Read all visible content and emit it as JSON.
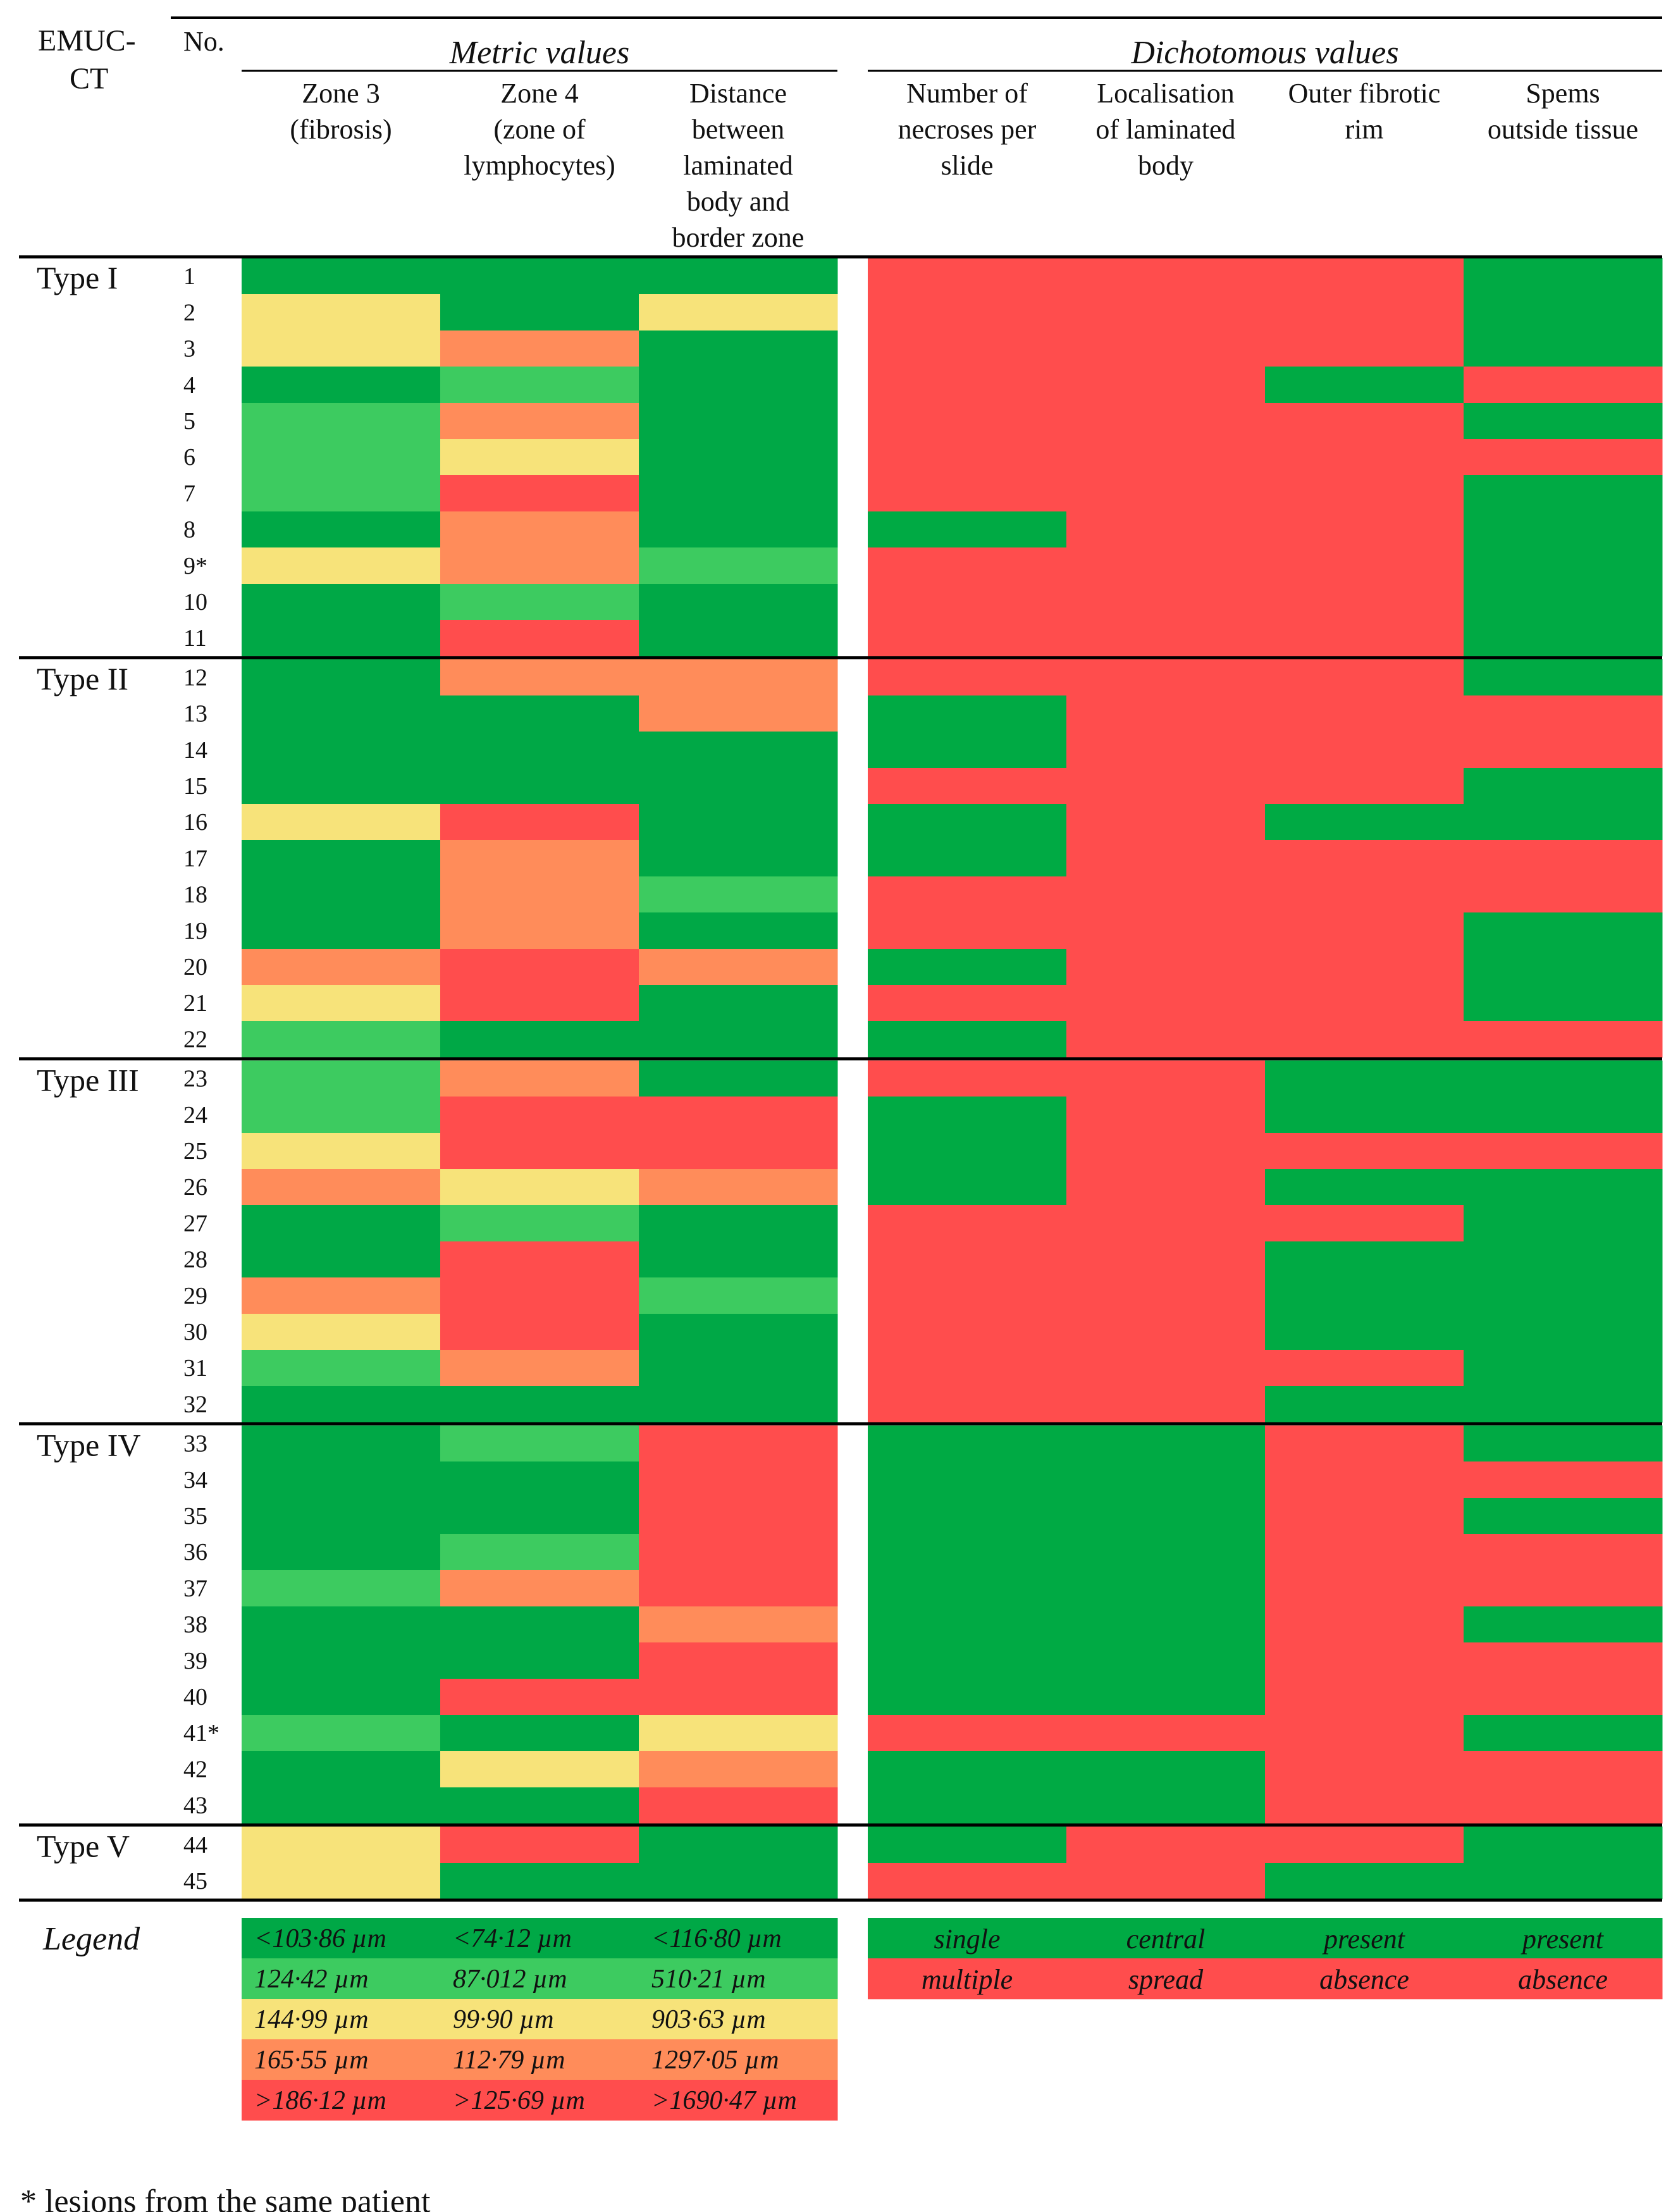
{
  "chart_data": {
    "type": "heatmap",
    "title": "",
    "colors": {
      "green_dark": "#00aa44",
      "green_mid": "#33cc66",
      "yellow": "#f7e37a",
      "orange": "#ff9955",
      "red": "#ff4d4d",
      "present": "#00aa44",
      "absent": "#ff4d4d"
    },
    "header": {
      "emuc_line1": "EMUC-",
      "emuc_line2": "CT",
      "no": "No.",
      "metric_group": "Metric values",
      "dichotomous_group": "Dichotomous values",
      "metric_columns": [
        [
          "Zone 3",
          "(fibrosis)"
        ],
        [
          "Zone 4",
          "(zone of",
          "lymphocytes)"
        ],
        [
          "Distance",
          "between",
          "laminated",
          "body and",
          "border zone"
        ]
      ],
      "dichotomous_columns": [
        [
          "Number of",
          "necroses per",
          "slide"
        ],
        [
          "Localisation",
          "of laminated",
          "body"
        ],
        [
          "Outer fibrotic",
          "rim"
        ],
        [
          "Spems",
          "outside tissue"
        ]
      ]
    },
    "metric_scale": [
      {
        "level": 0,
        "color": "#00a846"
      },
      {
        "level": 1,
        "color": "#3dcb60"
      },
      {
        "level": 2,
        "color": "#f7e37a"
      },
      {
        "level": 3,
        "color": "#ff8c5a"
      },
      {
        "level": 4,
        "color": "#ff4d4d"
      }
    ],
    "groups": [
      {
        "label": "Type I",
        "rows": [
          1,
          2,
          3,
          4,
          5,
          6,
          7,
          8,
          "9*",
          10,
          11
        ]
      },
      {
        "label": "Type II",
        "rows": [
          12,
          13,
          14,
          15,
          16,
          17,
          18,
          19,
          20,
          21,
          22
        ]
      },
      {
        "label": "Type III",
        "rows": [
          23,
          24,
          25,
          26,
          27,
          28,
          29,
          30,
          31,
          32
        ]
      },
      {
        "label": "Type IV",
        "rows": [
          33,
          34,
          35,
          36,
          37,
          38,
          39,
          40,
          "41*",
          42,
          43
        ]
      },
      {
        "label": "Type V",
        "rows": [
          44,
          45
        ]
      }
    ],
    "metric_levels": [
      [
        0,
        0,
        0
      ],
      [
        2,
        0,
        2
      ],
      [
        2,
        3,
        0
      ],
      [
        0,
        1,
        0
      ],
      [
        1,
        3,
        0
      ],
      [
        1,
        2,
        0
      ],
      [
        1,
        4,
        0
      ],
      [
        0,
        3,
        0
      ],
      [
        2,
        3,
        1
      ],
      [
        0,
        1,
        0
      ],
      [
        0,
        4,
        0
      ],
      [
        0,
        3,
        3
      ],
      [
        0,
        0,
        3
      ],
      [
        0,
        0,
        0
      ],
      [
        0,
        0,
        0
      ],
      [
        2,
        4,
        0
      ],
      [
        0,
        3,
        0
      ],
      [
        0,
        3,
        1
      ],
      [
        0,
        3,
        0
      ],
      [
        3,
        4,
        3
      ],
      [
        2,
        4,
        0
      ],
      [
        1,
        0,
        0
      ],
      [
        1,
        3,
        0
      ],
      [
        1,
        4,
        4
      ],
      [
        2,
        4,
        4
      ],
      [
        3,
        2,
        3
      ],
      [
        0,
        1,
        0
      ],
      [
        0,
        4,
        0
      ],
      [
        3,
        4,
        1
      ],
      [
        2,
        4,
        0
      ],
      [
        1,
        3,
        0
      ],
      [
        0,
        0,
        0
      ],
      [
        0,
        1,
        4
      ],
      [
        0,
        0,
        4
      ],
      [
        0,
        0,
        4
      ],
      [
        0,
        1,
        4
      ],
      [
        1,
        3,
        4
      ],
      [
        0,
        0,
        3
      ],
      [
        0,
        0,
        4
      ],
      [
        0,
        4,
        4
      ],
      [
        1,
        0,
        2
      ],
      [
        0,
        2,
        3
      ],
      [
        0,
        0,
        4
      ],
      [
        2,
        4,
        0
      ],
      [
        2,
        0,
        0
      ]
    ],
    "dichotomous_values": [
      [
        0,
        0,
        0,
        1
      ],
      [
        0,
        0,
        0,
        1
      ],
      [
        0,
        0,
        0,
        1
      ],
      [
        0,
        0,
        1,
        0
      ],
      [
        0,
        0,
        0,
        1
      ],
      [
        0,
        0,
        0,
        0
      ],
      [
        0,
        0,
        0,
        1
      ],
      [
        1,
        0,
        0,
        1
      ],
      [
        0,
        0,
        0,
        1
      ],
      [
        0,
        0,
        0,
        1
      ],
      [
        0,
        0,
        0,
        1
      ],
      [
        0,
        0,
        0,
        1
      ],
      [
        1,
        0,
        0,
        0
      ],
      [
        1,
        0,
        0,
        0
      ],
      [
        0,
        0,
        0,
        1
      ],
      [
        1,
        0,
        1,
        1
      ],
      [
        1,
        0,
        0,
        0
      ],
      [
        0,
        0,
        0,
        0
      ],
      [
        0,
        0,
        0,
        1
      ],
      [
        1,
        0,
        0,
        1
      ],
      [
        0,
        0,
        0,
        1
      ],
      [
        1,
        0,
        0,
        0
      ],
      [
        0,
        0,
        1,
        1
      ],
      [
        1,
        0,
        1,
        1
      ],
      [
        1,
        0,
        0,
        0
      ],
      [
        1,
        0,
        1,
        1
      ],
      [
        0,
        0,
        0,
        1
      ],
      [
        0,
        0,
        1,
        1
      ],
      [
        0,
        0,
        1,
        1
      ],
      [
        0,
        0,
        1,
        1
      ],
      [
        0,
        0,
        0,
        1
      ],
      [
        0,
        0,
        1,
        1
      ],
      [
        1,
        1,
        0,
        1
      ],
      [
        1,
        1,
        0,
        0
      ],
      [
        1,
        1,
        0,
        1
      ],
      [
        1,
        1,
        0,
        0
      ],
      [
        1,
        1,
        0,
        0
      ],
      [
        1,
        1,
        0,
        1
      ],
      [
        1,
        1,
        0,
        0
      ],
      [
        1,
        1,
        0,
        0
      ],
      [
        0,
        0,
        0,
        1
      ],
      [
        1,
        1,
        0,
        0
      ],
      [
        1,
        1,
        0,
        0
      ],
      [
        1,
        0,
        0,
        1
      ],
      [
        0,
        0,
        1,
        1
      ]
    ],
    "legend": {
      "title": "Legend",
      "metric_rows": [
        [
          "<103·86 µm",
          "<74·12 µm",
          "<116·80 µm"
        ],
        [
          "124·42 µm",
          "87·012 µm",
          "510·21 µm"
        ],
        [
          "144·99 µm",
          "99·90 µm",
          "903·63 µm"
        ],
        [
          "165·55 µm",
          "112·79 µm",
          "1297·05 µm"
        ],
        [
          ">186·12 µm",
          ">125·69 µm",
          ">1690·47 µm"
        ]
      ],
      "dichotomous_present": [
        "single",
        "central",
        "present",
        "present"
      ],
      "dichotomous_absent": [
        "multiple",
        "spread",
        "absence",
        "absence"
      ]
    },
    "footnote": "* lesions from the same patient"
  }
}
